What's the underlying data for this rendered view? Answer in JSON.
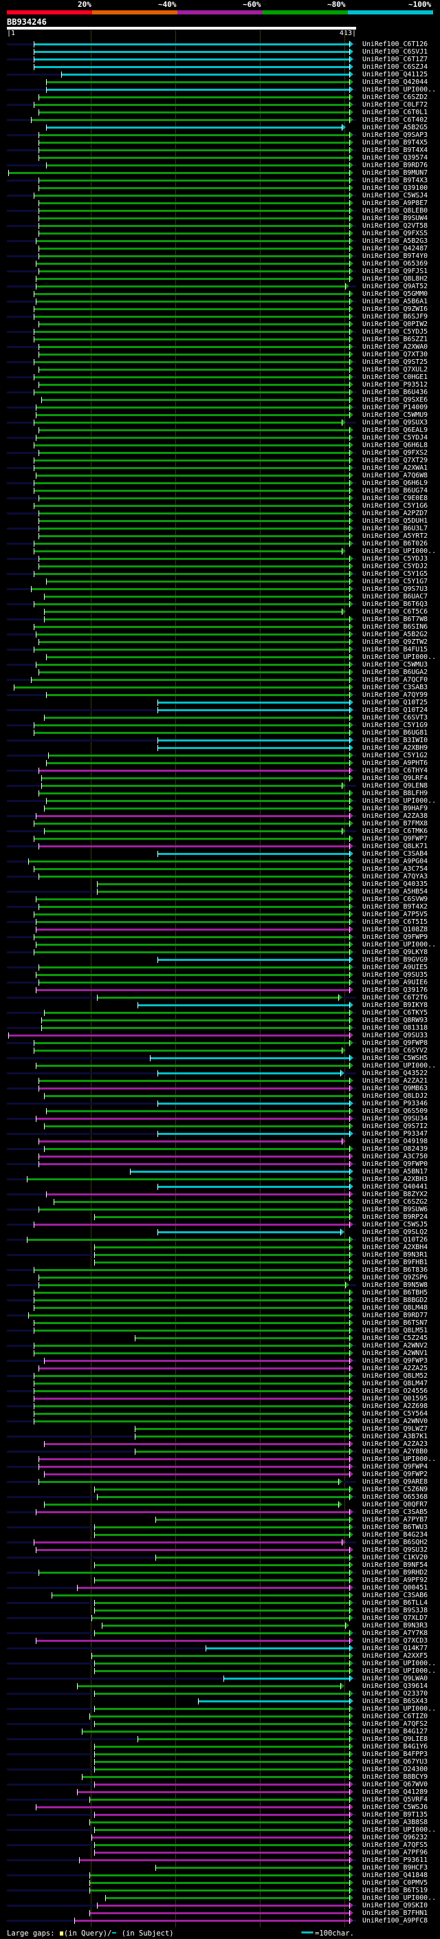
{
  "header": {
    "pct_labels": [
      "20%",
      "~40%",
      "~60%",
      "~80%",
      "~100%"
    ],
    "pct_colors": [
      "#ff0022",
      "#e06000",
      "#a020a0",
      "#00a000",
      "#00c0d0"
    ],
    "query_id": "BB934246",
    "query_start": "|1",
    "query_end": "413|",
    "query_length": 413
  },
  "colors": {
    "green": "#0a9a0a",
    "cyan": "#00c0c8",
    "magenta": "#a020a0",
    "unaligned": "#0b0b38",
    "gap_marker": "#ffff80"
  },
  "rows": [
    [
      "UniRef100_C6T126",
      "cyan",
      33,
      413
    ],
    [
      "UniRef100_C6SVJ1",
      "cyan",
      33,
      413
    ],
    [
      "UniRef100_C6T1Z7",
      "cyan",
      33,
      413
    ],
    [
      "UniRef100_C6SZJ4",
      "cyan",
      33,
      413
    ],
    [
      "UniRef100_Q41125",
      "cyan",
      66,
      413
    ],
    [
      "UniRef100_Q42044",
      "green",
      48,
      413
    ],
    [
      "UniRef100_UPI000..",
      "cyan",
      48,
      413
    ],
    [
      "UniRef100_C6SZD2",
      "green",
      39,
      413
    ],
    [
      "UniRef100_C0LF72",
      "green",
      33,
      413
    ],
    [
      "UniRef100_C6T0L1",
      "green",
      39,
      413
    ],
    [
      "UniRef100_C6T402",
      "green",
      30,
      413
    ],
    [
      "UniRef100_A5B2G5",
      "cyan",
      48,
      404
    ],
    [
      "UniRef100_Q9SAP3",
      "green",
      39,
      413
    ],
    [
      "UniRef100_B9T4X5",
      "green",
      39,
      413
    ],
    [
      "UniRef100_B9T4X4",
      "green",
      39,
      413
    ],
    [
      "UniRef100_Q39574",
      "green",
      39,
      413
    ],
    [
      "UniRef100_B9RD76",
      "green",
      48,
      413
    ],
    [
      "UniRef100_B9MUN7",
      "green",
      3,
      413
    ],
    [
      "UniRef100_B9T4X3",
      "green",
      39,
      413
    ],
    [
      "UniRef100_Q39100",
      "green",
      39,
      413
    ],
    [
      "UniRef100_C5WSJ4",
      "green",
      33,
      413
    ],
    [
      "UniRef100_A9P8E7",
      "green",
      39,
      413
    ],
    [
      "UniRef100_Q8LEB0",
      "green",
      39,
      413
    ],
    [
      "UniRef100_B9SUW4",
      "green",
      39,
      413
    ],
    [
      "UniRef100_Q2VT58",
      "green",
      39,
      413
    ],
    [
      "UniRef100_Q9FXS5",
      "green",
      39,
      413
    ],
    [
      "UniRef100_A5B2G3",
      "green",
      36,
      413
    ],
    [
      "UniRef100_Q42487",
      "green",
      39,
      413
    ],
    [
      "UniRef100_B9T4Y0",
      "green",
      39,
      413
    ],
    [
      "UniRef100_O65369",
      "green",
      36,
      413
    ],
    [
      "UniRef100_Q9FJS1",
      "green",
      39,
      413
    ],
    [
      "UniRef100_Q8L8H2",
      "green",
      36,
      413
    ],
    [
      "UniRef100_Q9AT52",
      "green",
      36,
      408
    ],
    [
      "UniRef100_Q5GMM0",
      "green",
      33,
      413
    ],
    [
      "UniRef100_A5B6A1",
      "green",
      36,
      413
    ],
    [
      "UniRef100_Q9ZWI6",
      "green",
      33,
      413
    ],
    [
      "UniRef100_B6SJF9",
      "green",
      33,
      413
    ],
    [
      "UniRef100_Q0PIW2",
      "green",
      39,
      413
    ],
    [
      "UniRef100_C5YDJ5",
      "green",
      33,
      413
    ],
    [
      "UniRef100_B6SZZ1",
      "green",
      33,
      413
    ],
    [
      "UniRef100_A2XWA0",
      "green",
      39,
      413
    ],
    [
      "UniRef100_Q7XT30",
      "green",
      39,
      413
    ],
    [
      "UniRef100_Q9ST25",
      "green",
      33,
      413
    ],
    [
      "UniRef100_Q7XUL2",
      "green",
      39,
      413
    ],
    [
      "UniRef100_C0HGE1",
      "green",
      33,
      413
    ],
    [
      "UniRef100_P93512",
      "green",
      39,
      413
    ],
    [
      "UniRef100_B6U436",
      "green",
      33,
      413
    ],
    [
      "UniRef100_Q9SXE6",
      "green",
      42,
      413
    ],
    [
      "UniRef100_P14009",
      "green",
      36,
      413
    ],
    [
      "UniRef100_C5WMU9",
      "green",
      36,
      413
    ],
    [
      "UniRef100_Q9SUX3",
      "green",
      33,
      404
    ],
    [
      "UniRef100_Q6EAL9",
      "green",
      39,
      413
    ],
    [
      "UniRef100_C5YDJ4",
      "green",
      36,
      413
    ],
    [
      "UniRef100_Q6H6L8",
      "green",
      33,
      413
    ],
    [
      "UniRef100_Q9FXS2",
      "green",
      39,
      413
    ],
    [
      "UniRef100_Q7XT29",
      "green",
      33,
      413
    ],
    [
      "UniRef100_A2XWA1",
      "green",
      33,
      413
    ],
    [
      "UniRef100_A7Q6W8",
      "green",
      36,
      413
    ],
    [
      "UniRef100_Q6H6L9",
      "green",
      33,
      413
    ],
    [
      "UniRef100_B6UG74",
      "green",
      33,
      413
    ],
    [
      "UniRef100_C9E0E8",
      "green",
      39,
      413
    ],
    [
      "UniRef100_C5Y1G6",
      "green",
      33,
      413
    ],
    [
      "UniRef100_A2PZD7",
      "green",
      39,
      413
    ],
    [
      "UniRef100_Q5DUH1",
      "green",
      39,
      413
    ],
    [
      "UniRef100_B6U3L7",
      "green",
      39,
      413
    ],
    [
      "UniRef100_A5YRT2",
      "green",
      39,
      413
    ],
    [
      "UniRef100_B6T026",
      "green",
      33,
      413
    ],
    [
      "UniRef100_UPI000..",
      "green",
      33,
      404
    ],
    [
      "UniRef100_C5YDJ3",
      "green",
      39,
      413
    ],
    [
      "UniRef100_C5YDJ2",
      "green",
      39,
      413
    ],
    [
      "UniRef100_C5Y1G5",
      "green",
      33,
      413
    ],
    [
      "UniRef100_C5Y1G7",
      "green",
      48,
      413
    ],
    [
      "UniRef100_Q9S7U3",
      "green",
      30,
      413
    ],
    [
      "UniRef100_B6UAC7",
      "green",
      46,
      413
    ],
    [
      "UniRef100_B6T6Q3",
      "green",
      33,
      413
    ],
    [
      "UniRef100_C6T5C6",
      "green",
      46,
      404
    ],
    [
      "UniRef100_B6T7W8",
      "green",
      46,
      413
    ],
    [
      "UniRef100_B6SIN6",
      "green",
      33,
      413
    ],
    [
      "UniRef100_A5B2G2",
      "green",
      36,
      413
    ],
    [
      "UniRef100_Q9ZTW2",
      "green",
      39,
      413
    ],
    [
      "UniRef100_B4FU15",
      "green",
      33,
      413
    ],
    [
      "UniRef100_UPI000..",
      "green",
      48,
      413
    ],
    [
      "UniRef100_C5WMU3",
      "green",
      36,
      413
    ],
    [
      "UniRef100_B6UGA2",
      "green",
      39,
      413
    ],
    [
      "UniRef100_A7QCF0",
      "green",
      30,
      413
    ],
    [
      "UniRef100_C3SAB3",
      "green",
      9,
      413
    ],
    [
      "UniRef100_A7QY99",
      "green",
      48,
      413
    ],
    [
      "UniRef100_Q10T25",
      "cyan",
      182,
      413
    ],
    [
      "UniRef100_Q10T24",
      "cyan",
      182,
      413
    ],
    [
      "UniRef100_C6SVT3",
      "green",
      46,
      413
    ],
    [
      "UniRef100_C5Y1G9",
      "green",
      33,
      413
    ],
    [
      "UniRef100_B6UG81",
      "green",
      33,
      413
    ],
    [
      "UniRef100_B3IWI0",
      "cyan",
      182,
      413
    ],
    [
      "UniRef100_A2XBH9",
      "cyan",
      182,
      413
    ],
    [
      "UniRef100_C5Y1G2",
      "green",
      51,
      413
    ],
    [
      "UniRef100_A9PHT6",
      "green",
      48,
      413
    ],
    [
      "UniRef100_C6THY4",
      "magenta",
      39,
      413
    ],
    [
      "UniRef100_Q9LRF4",
      "green",
      42,
      413
    ],
    [
      "UniRef100_Q9LEN8",
      "green",
      42,
      404
    ],
    [
      "UniRef100_B8LFH9",
      "green",
      39,
      413
    ],
    [
      "UniRef100_UPI000..",
      "green",
      48,
      413
    ],
    [
      "UniRef100_B9HAF9",
      "green",
      46,
      413
    ],
    [
      "UniRef100_A2ZA38",
      "magenta",
      36,
      413
    ],
    [
      "UniRef100_B7FMX8",
      "green",
      33,
      413
    ],
    [
      "UniRef100_C6TMK6",
      "green",
      46,
      404
    ],
    [
      "UniRef100_Q9FWP7",
      "green",
      33,
      413
    ],
    [
      "UniRef100_Q8LK71",
      "magenta",
      39,
      413
    ],
    [
      "UniRef100_C3SAB4",
      "cyan",
      182,
      413
    ],
    [
      "UniRef100_A9PG04",
      "green",
      27,
      413
    ],
    [
      "UniRef100_A3C754",
      "green",
      33,
      413
    ],
    [
      "UniRef100_A7QYA3",
      "green",
      39,
      413
    ],
    [
      "UniRef100_Q40335",
      "green",
      109,
      413
    ],
    [
      "UniRef100_A5HB54",
      "green",
      109,
      413
    ],
    [
      "UniRef100_C6SVW9",
      "green",
      36,
      413
    ],
    [
      "UniRef100_B9T4X2",
      "green",
      39,
      413
    ],
    [
      "UniRef100_A7P5V5",
      "green",
      33,
      413
    ],
    [
      "UniRef100_C6T5I5",
      "green",
      36,
      413
    ],
    [
      "UniRef100_Q108Z8",
      "magenta",
      36,
      413
    ],
    [
      "UniRef100_Q9FWP9",
      "green",
      33,
      413
    ],
    [
      "UniRef100_UPI000..",
      "green",
      36,
      413
    ],
    [
      "UniRef100_Q9LKY8",
      "green",
      33,
      413
    ],
    [
      "UniRef100_B9GVG9",
      "cyan",
      182,
      413
    ],
    [
      "UniRef100_A9UIE5",
      "green",
      39,
      413
    ],
    [
      "UniRef100_Q9SU35",
      "green",
      36,
      413
    ],
    [
      "UniRef100_A9UIE6",
      "green",
      39,
      413
    ],
    [
      "UniRef100_Q39176",
      "magenta",
      36,
      413
    ],
    [
      "UniRef100_C6T2T6",
      "green",
      109,
      400
    ],
    [
      "UniRef100_B9IKY8",
      "cyan",
      158,
      413
    ],
    [
      "UniRef100_C6TKY5",
      "green",
      46,
      413
    ],
    [
      "UniRef100_Q8RW93",
      "green",
      42,
      413
    ],
    [
      "UniRef100_O81318",
      "green",
      42,
      413
    ],
    [
      "UniRef100_Q9SU33",
      "magenta",
      3,
      413
    ],
    [
      "UniRef100_Q9FWP8",
      "green",
      33,
      413
    ],
    [
      "UniRef100_C6SYV2",
      "green",
      33,
      404
    ],
    [
      "UniRef100_C5WSH5",
      "cyan",
      173,
      413
    ],
    [
      "UniRef100_UPI000..",
      "green",
      36,
      413
    ],
    [
      "UniRef100_Q43522",
      "cyan",
      182,
      402
    ],
    [
      "UniRef100_A2ZA21",
      "green",
      39,
      413
    ],
    [
      "UniRef100_Q9MB63",
      "magenta",
      39,
      413
    ],
    [
      "UniRef100_Q8LDJ2",
      "green",
      46,
      413
    ],
    [
      "UniRef100_P93346",
      "cyan",
      182,
      413
    ],
    [
      "UniRef100_Q6S509",
      "green",
      48,
      413
    ],
    [
      "UniRef100_Q9SU34",
      "magenta",
      36,
      413
    ],
    [
      "UniRef100_Q9S7I2",
      "green",
      46,
      413
    ],
    [
      "UniRef100_P93347",
      "cyan",
      182,
      413
    ],
    [
      "UniRef100_O49198",
      "magenta",
      39,
      404
    ],
    [
      "UniRef100_O82439",
      "green",
      46,
      413
    ],
    [
      "UniRef100_A3C750",
      "magenta",
      39,
      413
    ],
    [
      "UniRef100_Q9FWP0",
      "magenta",
      39,
      413
    ],
    [
      "UniRef100_A5BN17",
      "cyan",
      149,
      413
    ],
    [
      "UniRef100_A2XBH3",
      "green",
      25,
      413
    ],
    [
      "UniRef100_Q40441",
      "cyan",
      182,
      413
    ],
    [
      "UniRef100_B8ZYX2",
      "magenta",
      48,
      413
    ],
    [
      "UniRef100_C6SZG2",
      "green",
      57,
      413
    ],
    [
      "UniRef100_B9SUW6",
      "green",
      39,
      413
    ],
    [
      "UniRef100_B9RP24",
      "green",
      106,
      413
    ],
    [
      "UniRef100_C5WSJ5",
      "magenta",
      33,
      413
    ],
    [
      "UniRef100_Q9SLQ2",
      "cyan",
      182,
      402
    ],
    [
      "UniRef100_Q10T26",
      "green",
      25,
      413
    ],
    [
      "UniRef100_A2XBH4",
      "green",
      106,
      413
    ],
    [
      "UniRef100_B9N3R1",
      "green",
      106,
      413
    ],
    [
      "UniRef100_B9FHB1",
      "green",
      106,
      413
    ],
    [
      "UniRef100_B6T836",
      "green",
      33,
      413
    ],
    [
      "UniRef100_Q9ZSP6",
      "green",
      39,
      413
    ],
    [
      "UniRef100_B9N5W8",
      "green",
      39,
      408
    ],
    [
      "UniRef100_B6TBH5",
      "green",
      33,
      413
    ],
    [
      "UniRef100_B8BGD2",
      "green",
      33,
      413
    ],
    [
      "UniRef100_Q8LM48",
      "green",
      33,
      413
    ],
    [
      "UniRef100_B9RD77",
      "green",
      27,
      413
    ],
    [
      "UniRef100_B6TSN7",
      "green",
      33,
      413
    ],
    [
      "UniRef100_Q8LM51",
      "green",
      33,
      413
    ],
    [
      "UniRef100_C5Z245",
      "green",
      155,
      413
    ],
    [
      "UniRef100_A2WNV2",
      "green",
      33,
      413
    ],
    [
      "UniRef100_A2WNV1",
      "green",
      33,
      413
    ],
    [
      "UniRef100_Q9FWP3",
      "magenta",
      46,
      413
    ],
    [
      "UniRef100_A2ZA25",
      "magenta",
      39,
      413
    ],
    [
      "UniRef100_Q8LM52",
      "green",
      33,
      413
    ],
    [
      "UniRef100_Q8LM47",
      "green",
      33,
      413
    ],
    [
      "UniRef100_O24556",
      "green",
      33,
      413
    ],
    [
      "UniRef100_Q01595",
      "magenta",
      33,
      413
    ],
    [
      "UniRef100_A2Z698",
      "green",
      33,
      413
    ],
    [
      "UniRef100_C5Y564",
      "green",
      33,
      413
    ],
    [
      "UniRef100_A2WNV0",
      "green",
      33,
      413
    ],
    [
      "UniRef100_Q9LWZ7",
      "green",
      155,
      413
    ],
    [
      "UniRef100_A3B7K1",
      "green",
      155,
      413
    ],
    [
      "UniRef100_A2ZA23",
      "magenta",
      46,
      413
    ],
    [
      "UniRef100_A2Y8B0",
      "green",
      155,
      413
    ],
    [
      "UniRef100_UPI000..",
      "magenta",
      39,
      413
    ],
    [
      "UniRef100_Q9FWP4",
      "magenta",
      39,
      413
    ],
    [
      "UniRef100_Q9FWP2",
      "magenta",
      46,
      413
    ],
    [
      "UniRef100_Q9ARE8",
      "green",
      39,
      400
    ],
    [
      "UniRef100_C5Z6N9",
      "green",
      106,
      413
    ],
    [
      "UniRef100_O65368",
      "green",
      109,
      413
    ],
    [
      "UniRef100_Q0QFR7",
      "green",
      46,
      400
    ],
    [
      "UniRef100_C3SAB5",
      "magenta",
      36,
      413
    ],
    [
      "UniRef100_A7PYB7",
      "green",
      180,
      413
    ],
    [
      "UniRef100_B6TWU3",
      "green",
      106,
      413
    ],
    [
      "UniRef100_B4G234",
      "green",
      106,
      413
    ],
    [
      "UniRef100_B6SQH2",
      "magenta",
      33,
      404
    ],
    [
      "UniRef100_Q9SU32",
      "magenta",
      36,
      413
    ],
    [
      "UniRef100_C1KV20",
      "green",
      180,
      413
    ],
    [
      "UniRef100_B9NF54",
      "green",
      106,
      413
    ],
    [
      "UniRef100_B9RHD2",
      "green",
      39,
      413
    ],
    [
      "UniRef100_A9PF92",
      "green",
      106,
      413
    ],
    [
      "UniRef100_Q00451",
      "magenta",
      85,
      413
    ],
    [
      "UniRef100_C3SAB6",
      "green",
      55,
      413
    ],
    [
      "UniRef100_B6TLL4",
      "green",
      106,
      413
    ],
    [
      "UniRef100_B9S3J8",
      "green",
      106,
      413
    ],
    [
      "UniRef100_Q7XLD7",
      "green",
      103,
      413
    ],
    [
      "UniRef100_B9N3R3",
      "green",
      115,
      408
    ],
    [
      "UniRef100_A7Y7K8",
      "green",
      106,
      413
    ],
    [
      "UniRef100_Q7XCD3",
      "magenta",
      36,
      413
    ],
    [
      "UniRef100_Q14K77",
      "cyan",
      240,
      413
    ],
    [
      "UniRef100_A2XXF5",
      "green",
      103,
      413
    ],
    [
      "UniRef100_UPI000..",
      "green",
      106,
      413
    ],
    [
      "UniRef100_UPI000..",
      "green",
      106,
      413
    ],
    [
      "UniRef100_Q9LWA0",
      "cyan",
      262,
      413
    ],
    [
      "UniRef100_Q39614",
      "green",
      85,
      402
    ],
    [
      "UniRef100_O23370",
      "green",
      106,
      413
    ],
    [
      "UniRef100_B6SX43",
      "cyan",
      231,
      413
    ],
    [
      "UniRef100_UPI000..",
      "green",
      106,
      413
    ],
    [
      "UniRef100_C6TIZ0",
      "green",
      100,
      413
    ],
    [
      "UniRef100_A7QFS2",
      "green",
      106,
      413
    ],
    [
      "UniRef100_B4G127",
      "green",
      91,
      413
    ],
    [
      "UniRef100_Q9LIE8",
      "green",
      158,
      413
    ],
    [
      "UniRef100_B4G1Y6",
      "green",
      106,
      413
    ],
    [
      "UniRef100_B4FPP3",
      "green",
      106,
      413
    ],
    [
      "UniRef100_Q67YU3",
      "green",
      106,
      413
    ],
    [
      "UniRef100_O24300",
      "green",
      106,
      413
    ],
    [
      "UniRef100_B8BCY9",
      "green",
      91,
      413
    ],
    [
      "UniRef100_Q67WV0",
      "magenta",
      106,
      413
    ],
    [
      "UniRef100_Q41289",
      "magenta",
      85,
      413
    ],
    [
      "UniRef100_Q5VRF4",
      "green",
      100,
      413
    ],
    [
      "UniRef100_C5WSJ6",
      "magenta",
      36,
      413
    ],
    [
      "UniRef100_B9T135",
      "magenta",
      106,
      413
    ],
    [
      "UniRef100_A3B8S8",
      "green",
      100,
      413
    ],
    [
      "UniRef100_UPI000..",
      "green",
      106,
      413
    ],
    [
      "UniRef100_Q96232",
      "magenta",
      103,
      413
    ],
    [
      "UniRef100_A7QFS5",
      "green",
      106,
      413
    ],
    [
      "UniRef100_A7PF96",
      "magenta",
      106,
      413
    ],
    [
      "UniRef100_P93611",
      "magenta",
      88,
      413
    ],
    [
      "UniRef100_B9HCF3",
      "green",
      180,
      413
    ],
    [
      "UniRef100_Q41848",
      "green",
      100,
      413
    ],
    [
      "UniRef100_C0PMV5",
      "green",
      100,
      413
    ],
    [
      "UniRef100_B6TS19",
      "green",
      100,
      413
    ],
    [
      "UniRef100_UPI000..",
      "green",
      119,
      413
    ],
    [
      "UniRef100_Q9SKI0",
      "magenta",
      109,
      413
    ],
    [
      "UniRef100_B7FHN1",
      "magenta",
      100,
      413
    ],
    [
      "UniRef100_A9PFC8",
      "magenta",
      82,
      413
    ]
  ],
  "footer": {
    "large_gaps_label": "Large gaps:",
    "in_query": "(in Query)/",
    "in_subject": "(in Subject)",
    "scale_label": "=100char."
  }
}
